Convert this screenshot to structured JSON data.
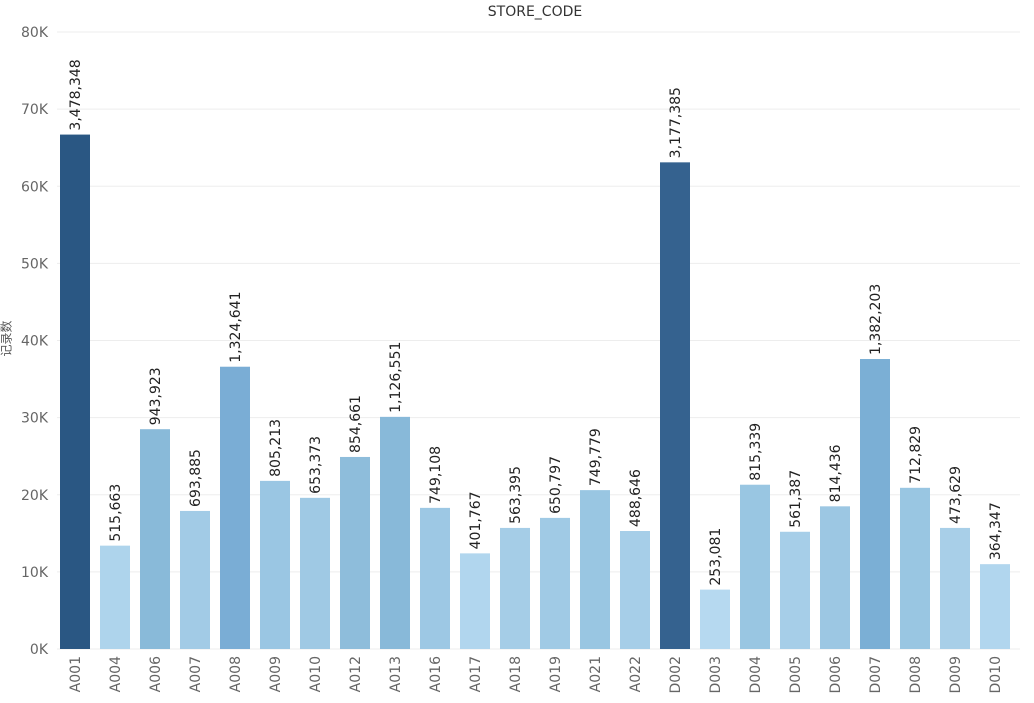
{
  "chart_data": {
    "type": "bar",
    "title": "STORE_CODE",
    "ylabel": "记录数",
    "xlabel": "",
    "ylim": [
      0,
      80000
    ],
    "y_ticks": [
      {
        "value": 0,
        "label": "0K"
      },
      {
        "value": 10000,
        "label": "10K"
      },
      {
        "value": 20000,
        "label": "20K"
      },
      {
        "value": 30000,
        "label": "30K"
      },
      {
        "value": 40000,
        "label": "40K"
      },
      {
        "value": 50000,
        "label": "50K"
      },
      {
        "value": 60000,
        "label": "60K"
      },
      {
        "value": 70000,
        "label": "70K"
      },
      {
        "value": 80000,
        "label": "80K"
      }
    ],
    "grid": true,
    "categories": [
      "A001",
      "A004",
      "A006",
      "A007",
      "A008",
      "A009",
      "A010",
      "A012",
      "A013",
      "A016",
      "A017",
      "A018",
      "A019",
      "A021",
      "A022",
      "D002",
      "D003",
      "D004",
      "D005",
      "D006",
      "D007",
      "D008",
      "D009",
      "D010"
    ],
    "values": [
      66700,
      13400,
      28500,
      17900,
      36600,
      21800,
      19600,
      24900,
      30100,
      18300,
      12400,
      15700,
      17000,
      20600,
      15300,
      63100,
      7700,
      21300,
      15200,
      18500,
      37600,
      20900,
      15700,
      11000
    ],
    "data_labels": [
      "3,478,348",
      "515,663",
      "943,923",
      "693,885",
      "1,324,641",
      "805,213",
      "653,373",
      "854,661",
      "1,126,551",
      "749,108",
      "401,767",
      "563,395",
      "650,797",
      "749,779",
      "488,646",
      "3,177,385",
      "253,081",
      "815,339",
      "561,387",
      "814,436",
      "1,382,203",
      "712,829",
      "473,629",
      "364,347"
    ],
    "colors": [
      "#2a5783",
      "#aed4ec",
      "#89bad9",
      "#a2cbe6",
      "#7aadd5",
      "#9ac6e3",
      "#9fc9e4",
      "#8ebddb",
      "#88b9d9",
      "#9dc8e4",
      "#b1d6ee",
      "#a5cde7",
      "#a0cae5",
      "#99c6e2",
      "#a6cee8",
      "#35628f",
      "#b6d9f0",
      "#99c6e2",
      "#a6cee8",
      "#9cc7e3",
      "#7bafd5",
      "#99c6e2",
      "#a8cfe8",
      "#b1d6ee"
    ]
  }
}
